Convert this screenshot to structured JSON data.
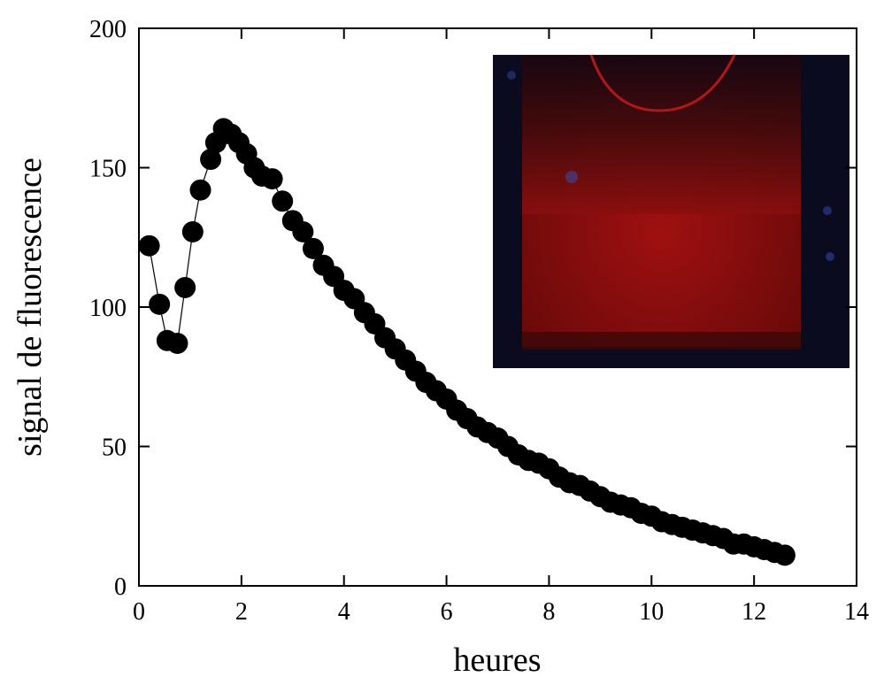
{
  "chart_data": {
    "type": "line",
    "x_label": "heures",
    "y_label": "signal de fluorescence",
    "x": [
      0.2,
      0.4,
      0.55,
      0.75,
      0.9,
      1.05,
      1.2,
      1.4,
      1.5,
      1.65,
      1.8,
      1.95,
      2.1,
      2.25,
      2.4,
      2.6,
      2.8,
      3.0,
      3.2,
      3.4,
      3.6,
      3.8,
      4.0,
      4.2,
      4.4,
      4.6,
      4.8,
      5.0,
      5.2,
      5.4,
      5.6,
      5.8,
      6.0,
      6.2,
      6.4,
      6.6,
      6.8,
      7.0,
      7.2,
      7.4,
      7.6,
      7.8,
      8.0,
      8.2,
      8.4,
      8.6,
      8.8,
      9.0,
      9.2,
      9.4,
      9.6,
      9.8,
      10.0,
      10.2,
      10.4,
      10.6,
      10.8,
      11.0,
      11.2,
      11.4,
      11.6,
      11.8,
      12.0,
      12.2,
      12.4,
      12.6
    ],
    "series": [
      {
        "color": "#000000",
        "values": [
          122,
          101,
          88,
          87,
          107,
          127,
          142,
          153,
          159,
          164,
          162,
          159,
          155,
          150,
          147,
          146,
          138,
          131,
          127,
          121,
          115,
          111,
          106,
          103,
          98,
          94,
          89,
          85,
          81,
          77,
          73,
          70,
          67,
          63,
          60,
          57,
          55,
          53,
          50,
          47,
          45,
          44,
          42,
          39,
          37,
          36,
          34,
          32,
          30,
          29,
          28,
          26,
          25,
          23,
          22,
          21,
          20,
          19,
          18,
          17,
          15,
          15,
          14,
          13,
          12,
          11
        ]
      }
    ],
    "xlim": [
      0,
      14
    ],
    "xticks": [
      0,
      2,
      4,
      6,
      8,
      10,
      12,
      14
    ],
    "ylim": [
      0,
      200
    ],
    "yticks": [
      0,
      50,
      100,
      150,
      200
    ]
  }
}
